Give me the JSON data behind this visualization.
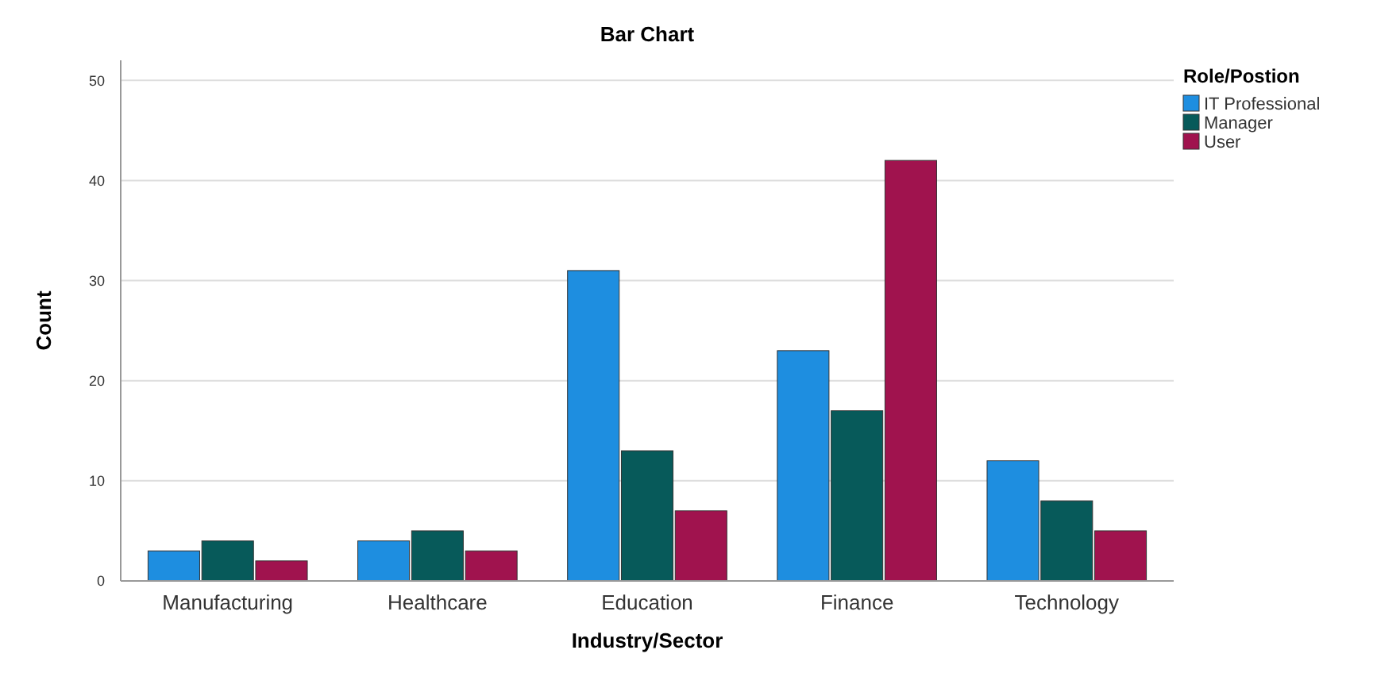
{
  "chart_data": {
    "type": "bar",
    "title": "Bar Chart",
    "xlabel": "Industry/Sector",
    "ylabel": "Count",
    "legend_title": "Role/Postion",
    "categories": [
      "Manufacturing",
      "Healthcare",
      "Education",
      "Finance",
      "Technology"
    ],
    "series": [
      {
        "name": "IT Professional",
        "color": "#1e8ee0",
        "values": [
          3,
          4,
          31,
          23,
          12
        ]
      },
      {
        "name": "Manager",
        "color": "#075a5a",
        "values": [
          4,
          5,
          13,
          17,
          8
        ]
      },
      {
        "name": "User",
        "color": "#a0134e",
        "values": [
          2,
          3,
          7,
          42,
          5
        ]
      }
    ],
    "ylim": [
      0,
      52
    ],
    "yticks": [
      0,
      10,
      20,
      30,
      40,
      50
    ],
    "grid": "y",
    "legend": "right"
  }
}
